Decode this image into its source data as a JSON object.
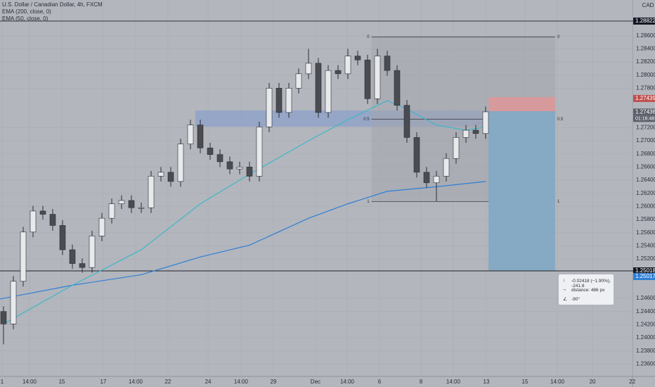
{
  "header": {
    "symbol": "U.S. Dollar / Canadian Dollar, 4h, FXCM",
    "currency": "CAD"
  },
  "chart_data": {
    "type": "candlestick",
    "open": [
      1.244,
      1.2421,
      1.2486,
      1.2561,
      1.2593,
      1.2588,
      1.2571,
      1.2534,
      1.2513,
      1.2507,
      1.2555,
      1.2582,
      1.2604,
      1.2609,
      1.2598,
      1.2598,
      1.2646,
      1.2652,
      1.2638,
      1.2695,
      1.2724,
      1.2689,
      1.2679,
      1.2668,
      1.2657,
      1.266,
      1.2646,
      1.2721,
      1.278,
      1.2743,
      1.278,
      1.2802,
      1.2818,
      1.2743,
      1.2807,
      1.2802,
      1.2829,
      1.2823,
      1.2764,
      1.2829,
      1.2807,
      1.2754,
      1.2705,
      1.2652,
      1.2636,
      1.2646,
      1.2673,
      1.2705,
      1.2716,
      1.2711
    ],
    "high": [
      1.2448,
      1.2494,
      1.2569,
      1.2601,
      1.2601,
      1.2596,
      1.2579,
      1.2542,
      1.2521,
      1.2563,
      1.259,
      1.2612,
      1.2617,
      1.2617,
      1.2606,
      1.2654,
      1.266,
      1.266,
      1.2703,
      1.2732,
      1.2732,
      1.2697,
      1.2687,
      1.2676,
      1.2668,
      1.2668,
      1.2729,
      1.2788,
      1.2788,
      1.2788,
      1.281,
      1.284,
      1.2826,
      1.2815,
      1.2815,
      1.284,
      1.2837,
      1.2831,
      1.284,
      1.2837,
      1.2815,
      1.2762,
      1.2713,
      1.266,
      1.2654,
      1.2681,
      1.2713,
      1.2724,
      1.2724,
      1.2752
    ],
    "low": [
      1.239,
      1.2413,
      1.2478,
      1.2553,
      1.258,
      1.2563,
      1.2526,
      1.2505,
      1.2499,
      1.2499,
      1.2547,
      1.2574,
      1.2596,
      1.259,
      1.259,
      1.259,
      1.2638,
      1.263,
      1.263,
      1.2687,
      1.2681,
      1.2671,
      1.266,
      1.2649,
      1.2649,
      1.2638,
      1.2638,
      1.2713,
      1.2735,
      1.2735,
      1.2772,
      1.2794,
      1.2735,
      1.2735,
      1.2794,
      1.2794,
      1.2815,
      1.2756,
      1.2756,
      1.2799,
      1.2746,
      1.2697,
      1.2644,
      1.2628,
      1.2608,
      1.2638,
      1.2665,
      1.2697,
      1.2703,
      1.2703
    ],
    "close": [
      1.2421,
      1.2486,
      1.2561,
      1.2593,
      1.2588,
      1.2571,
      1.2534,
      1.2513,
      1.2507,
      1.2555,
      1.2582,
      1.2604,
      1.2609,
      1.2598,
      1.2598,
      1.2646,
      1.2652,
      1.2638,
      1.2695,
      1.2724,
      1.2689,
      1.2679,
      1.2668,
      1.2657,
      1.266,
      1.2646,
      1.2721,
      1.278,
      1.2743,
      1.278,
      1.2802,
      1.2818,
      1.2743,
      1.2807,
      1.2802,
      1.2829,
      1.2823,
      1.2764,
      1.2829,
      1.2807,
      1.2754,
      1.2705,
      1.2652,
      1.2636,
      1.2646,
      1.2673,
      1.2705,
      1.2716,
      1.2711,
      1.2744
    ],
    "up_color": "#e8e9ec",
    "down_color": "#4a4c52",
    "series": [
      {
        "name": "EMA (200, close, 0)",
        "color": "#2e7fd6",
        "x": [
          -0.36,
          7,
          14,
          20,
          25,
          31,
          35,
          39,
          44,
          49
        ],
        "values": [
          1.2459,
          1.248,
          1.2496,
          1.2523,
          1.2541,
          1.2582,
          1.2604,
          1.2623,
          1.263,
          1.2638
        ]
      },
      {
        "name": "EMA (50, close, 0)",
        "color": "#3fb6c9",
        "x": [
          0,
          7,
          14,
          20,
          25,
          31,
          35,
          39,
          41,
          44,
          47,
          49
        ],
        "values": [
          1.2421,
          1.248,
          1.2534,
          1.2604,
          1.2649,
          1.27,
          1.2732,
          1.2761,
          1.2748,
          1.2724,
          1.2716,
          1.2721
        ]
      }
    ],
    "xlim": [
      -0.357,
      63.93
    ],
    "ylim": [
      1.23411,
      1.29143
    ],
    "xticks": [
      {
        "value": -0.14,
        "label": "1"
      },
      {
        "value": 2.64,
        "label": "14:00"
      },
      {
        "value": 5.93,
        "label": "15"
      },
      {
        "value": 10.14,
        "label": "17"
      },
      {
        "value": 13.43,
        "label": "14:00"
      },
      {
        "value": 16.71,
        "label": "22"
      },
      {
        "value": 20.79,
        "label": "24"
      },
      {
        "value": 24.14,
        "label": "14:00"
      },
      {
        "value": 27.43,
        "label": "29"
      },
      {
        "value": 31.71,
        "label": "Dec"
      },
      {
        "value": 34.93,
        "label": "14:00"
      },
      {
        "value": 38.21,
        "label": "6"
      },
      {
        "value": 42.43,
        "label": "8"
      },
      {
        "value": 45.71,
        "label": "14:00"
      },
      {
        "value": 49.07,
        "label": "13"
      },
      {
        "value": 53,
        "label": "15"
      },
      {
        "value": 56.29,
        "label": "14:00"
      },
      {
        "value": 59.86,
        "label": "20"
      },
      {
        "value": 63.9,
        "label": "22"
      }
    ],
    "yticks": [
      {
        "value": 1.286,
        "label": "1.28600"
      },
      {
        "value": 1.284,
        "label": "1.28400"
      },
      {
        "value": 1.282,
        "label": "1.28200"
      },
      {
        "value": 1.28,
        "label": "1.28000"
      },
      {
        "value": 1.278,
        "label": "1.27800"
      },
      {
        "value": 1.272,
        "label": "1.27200"
      },
      {
        "value": 1.27,
        "label": "1.27000"
      },
      {
        "value": 1.268,
        "label": "1.26800"
      },
      {
        "value": 1.266,
        "label": "1.26600"
      },
      {
        "value": 1.264,
        "label": "1.26400"
      },
      {
        "value": 1.262,
        "label": "1.26200"
      },
      {
        "value": 1.26,
        "label": "1.26000"
      },
      {
        "value": 1.258,
        "label": "1.25800"
      },
      {
        "value": 1.256,
        "label": "1.25600"
      },
      {
        "value": 1.254,
        "label": "1.25400"
      },
      {
        "value": 1.252,
        "label": "1.25200"
      },
      {
        "value": 1.246,
        "label": "1.24600"
      },
      {
        "value": 1.244,
        "label": "1.24400"
      },
      {
        "value": 1.242,
        "label": "1.24200"
      },
      {
        "value": 1.24,
        "label": "1.24000"
      },
      {
        "value": 1.238,
        "label": "1.23800"
      },
      {
        "value": 1.236,
        "label": "1.23600"
      }
    ],
    "grid": true,
    "horizontal_lines": [
      1.28822,
      1.25018
    ],
    "zone": {
      "start": 19.5,
      "end": 49.3,
      "top": 1.27461,
      "bottom": 1.27215,
      "color": "#8fa3c9"
    },
    "fib": {
      "start": 37.4,
      "end": 56.07,
      "levels": [
        {
          "value": 1.2858,
          "label": "0"
        },
        {
          "value": 1.27329,
          "label": "0.5"
        },
        {
          "value": 1.26075,
          "label": "1"
        }
      ]
    },
    "position": {
      "start": 49.3,
      "end": 56.07,
      "entry": 1.2745,
      "stop": 1.27665,
      "target": 1.25018,
      "stop_color": "#d69a9c",
      "target_color": "#86a9c4",
      "stop_label": "1.27439",
      "target_label": "1.25017"
    },
    "price_labels": [
      {
        "value": 1.28822,
        "color": "#131722"
      },
      {
        "value": 1.27436,
        "color": "#5d606b"
      },
      {
        "value": 1.25018,
        "color": "#131722"
      }
    ]
  },
  "countdown": "01:16:48",
  "measure": {
    "lines": [
      "-0.02418 (−1.90%), -241.8",
      "distance: 486 px",
      "-90°"
    ]
  }
}
